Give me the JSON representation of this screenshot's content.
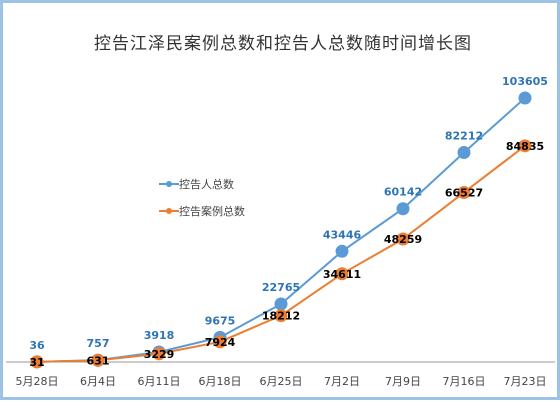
{
  "chart_data": {
    "type": "line",
    "title": "控告江泽民案例总数和控告人总数随时间增长图",
    "categories": [
      "5月28日",
      "6月4日",
      "6月11日",
      "6月18日",
      "6月25日",
      "7月2日",
      "7月9日",
      "7月16日",
      "7月23日"
    ],
    "series": [
      {
        "name": "控告人总数",
        "color": "#5b9bd5",
        "label_color": "#2e75b6",
        "values": [
          36,
          757,
          3918,
          9675,
          22765,
          43446,
          60142,
          82212,
          103605
        ]
      },
      {
        "name": "控告案例总数",
        "color": "#ed7d31",
        "label_color": "#000000",
        "values": [
          31,
          631,
          3229,
          7924,
          18212,
          34611,
          48259,
          66527,
          84835
        ]
      }
    ],
    "ylim": [
      0,
      110000
    ],
    "grid": false,
    "legend_position": "left-middle"
  }
}
